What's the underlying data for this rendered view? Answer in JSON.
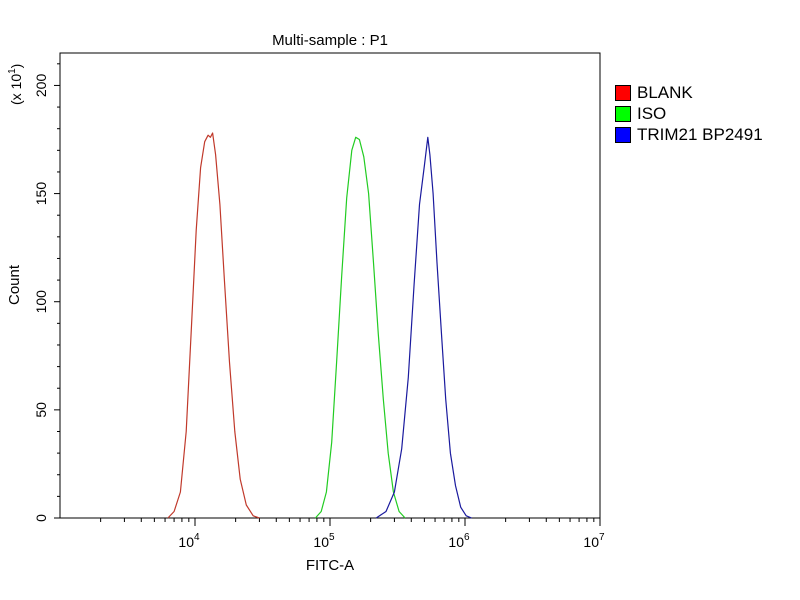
{
  "chart_data": {
    "type": "line",
    "title": "Multi-sample : P1",
    "xlabel": "FITC-A",
    "ylabel": "Count",
    "ymultiplier_label": "(x 10",
    "ymultiplier_exp": "1",
    "ymultiplier_close": ")",
    "xscale": "log",
    "xlim": [
      1000,
      10000000
    ],
    "ylim": [
      0,
      215
    ],
    "x_ticks": [
      {
        "value": 10000,
        "base": "10",
        "exp": "4"
      },
      {
        "value": 100000,
        "base": "10",
        "exp": "5"
      },
      {
        "value": 1000000,
        "base": "10",
        "exp": "6"
      },
      {
        "value": 10000000,
        "base": "10",
        "exp": "7"
      }
    ],
    "y_ticks": [
      {
        "value": 0,
        "label": "0"
      },
      {
        "value": 50,
        "label": "50"
      },
      {
        "value": 100,
        "label": "100"
      },
      {
        "value": 150,
        "label": "150"
      },
      {
        "value": 200,
        "label": "200"
      }
    ],
    "grid": false,
    "legend_position": "right",
    "series": [
      {
        "name": "BLANK",
        "color": "#c0392b",
        "swatch": "#ff0000",
        "x": [
          6300,
          7000,
          7800,
          8600,
          9400,
          10200,
          11000,
          11800,
          12500,
          13000,
          13500,
          14200,
          15300,
          16500,
          18000,
          19700,
          21600,
          24000,
          27000,
          30000
        ],
        "y": [
          0,
          3,
          12,
          40,
          88,
          133,
          162,
          174,
          177,
          176,
          178,
          168,
          145,
          110,
          72,
          40,
          18,
          6,
          1,
          0
        ]
      },
      {
        "name": "ISO",
        "color": "#22cc22",
        "swatch": "#00ff00",
        "x": [
          78000,
          86000,
          94000,
          103000,
          112000,
          122000,
          133000,
          145000,
          155000,
          165000,
          178000,
          193000,
          210000,
          228000,
          248000,
          270000,
          295000,
          325000,
          360000
        ],
        "y": [
          0,
          3,
          12,
          35,
          72,
          112,
          148,
          170,
          176,
          175,
          167,
          150,
          118,
          85,
          55,
          30,
          12,
          3,
          0
        ]
      },
      {
        "name": "TRIM21 BP2491",
        "color": "#1a1a9e",
        "swatch": "#0000ff",
        "x": [
          220000,
          260000,
          300000,
          340000,
          380000,
          420000,
          460000,
          500000,
          530000,
          550000,
          580000,
          620000,
          670000,
          720000,
          780000,
          850000,
          930000,
          1020000,
          1120000
        ],
        "y": [
          0,
          3,
          12,
          32,
          65,
          108,
          145,
          163,
          176,
          168,
          150,
          118,
          85,
          55,
          30,
          15,
          5,
          1,
          0
        ]
      }
    ]
  }
}
